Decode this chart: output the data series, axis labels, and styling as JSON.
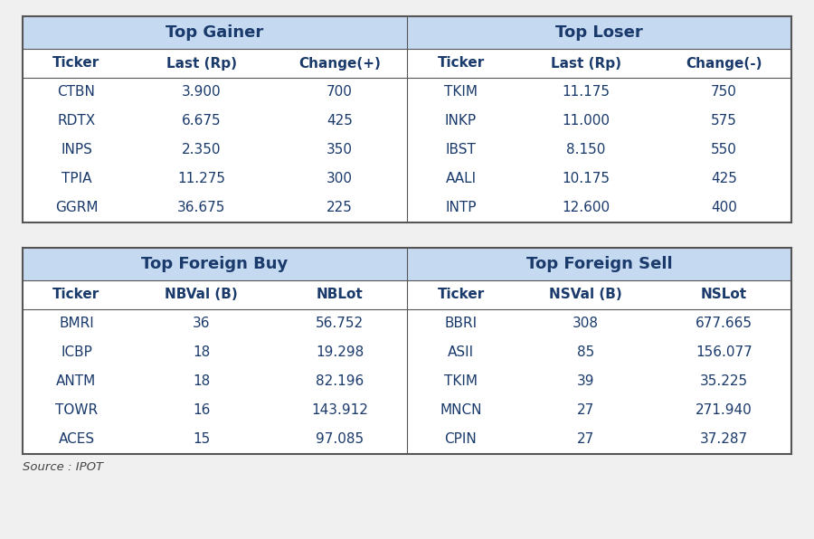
{
  "background_color": "#f0f0f0",
  "table_bg_color": "#ffffff",
  "header_bg_color": "#c5d9f1",
  "border_color": "#555555",
  "text_color": "#1a3a6b",
  "source_text": "Source : IPOT",
  "top_gainer_header": "Top Gainer",
  "top_loser_header": "Top Loser",
  "top_foreign_buy_header": "Top Foreign Buy",
  "top_foreign_sell_header": "Top Foreign Sell",
  "gainer_col_headers": [
    "Ticker",
    "Last (Rp)",
    "Change(+)"
  ],
  "loser_col_headers": [
    "Ticker",
    "Last (Rp)",
    "Change(-)"
  ],
  "foreign_buy_col_headers": [
    "Ticker",
    "NBVal (B)",
    "NBLot"
  ],
  "foreign_sell_col_headers": [
    "Ticker",
    "NSVal (B)",
    "NSLot"
  ],
  "gainer_data": [
    [
      "CTBN",
      "3.900",
      "700"
    ],
    [
      "RDTX",
      "6.675",
      "425"
    ],
    [
      "INPS",
      "2.350",
      "350"
    ],
    [
      "TPIA",
      "11.275",
      "300"
    ],
    [
      "GGRM",
      "36.675",
      "225"
    ]
  ],
  "loser_data": [
    [
      "TKIM",
      "11.175",
      "750"
    ],
    [
      "INKP",
      "11.000",
      "575"
    ],
    [
      "IBST",
      "8.150",
      "550"
    ],
    [
      "AALI",
      "10.175",
      "425"
    ],
    [
      "INTP",
      "12.600",
      "400"
    ]
  ],
  "foreign_buy_data": [
    [
      "BMRI",
      "36",
      "56.752"
    ],
    [
      "ICBP",
      "18",
      "19.298"
    ],
    [
      "ANTM",
      "18",
      "82.196"
    ],
    [
      "TOWR",
      "16",
      "143.912"
    ],
    [
      "ACES",
      "15",
      "97.085"
    ]
  ],
  "foreign_sell_data": [
    [
      "BBRI",
      "308",
      "677.665"
    ],
    [
      "ASII",
      "85",
      "156.077"
    ],
    [
      "TKIM",
      "39",
      "35.225"
    ],
    [
      "MNCN",
      "27",
      "271.940"
    ],
    [
      "CPIN",
      "27",
      "37.287"
    ]
  ]
}
